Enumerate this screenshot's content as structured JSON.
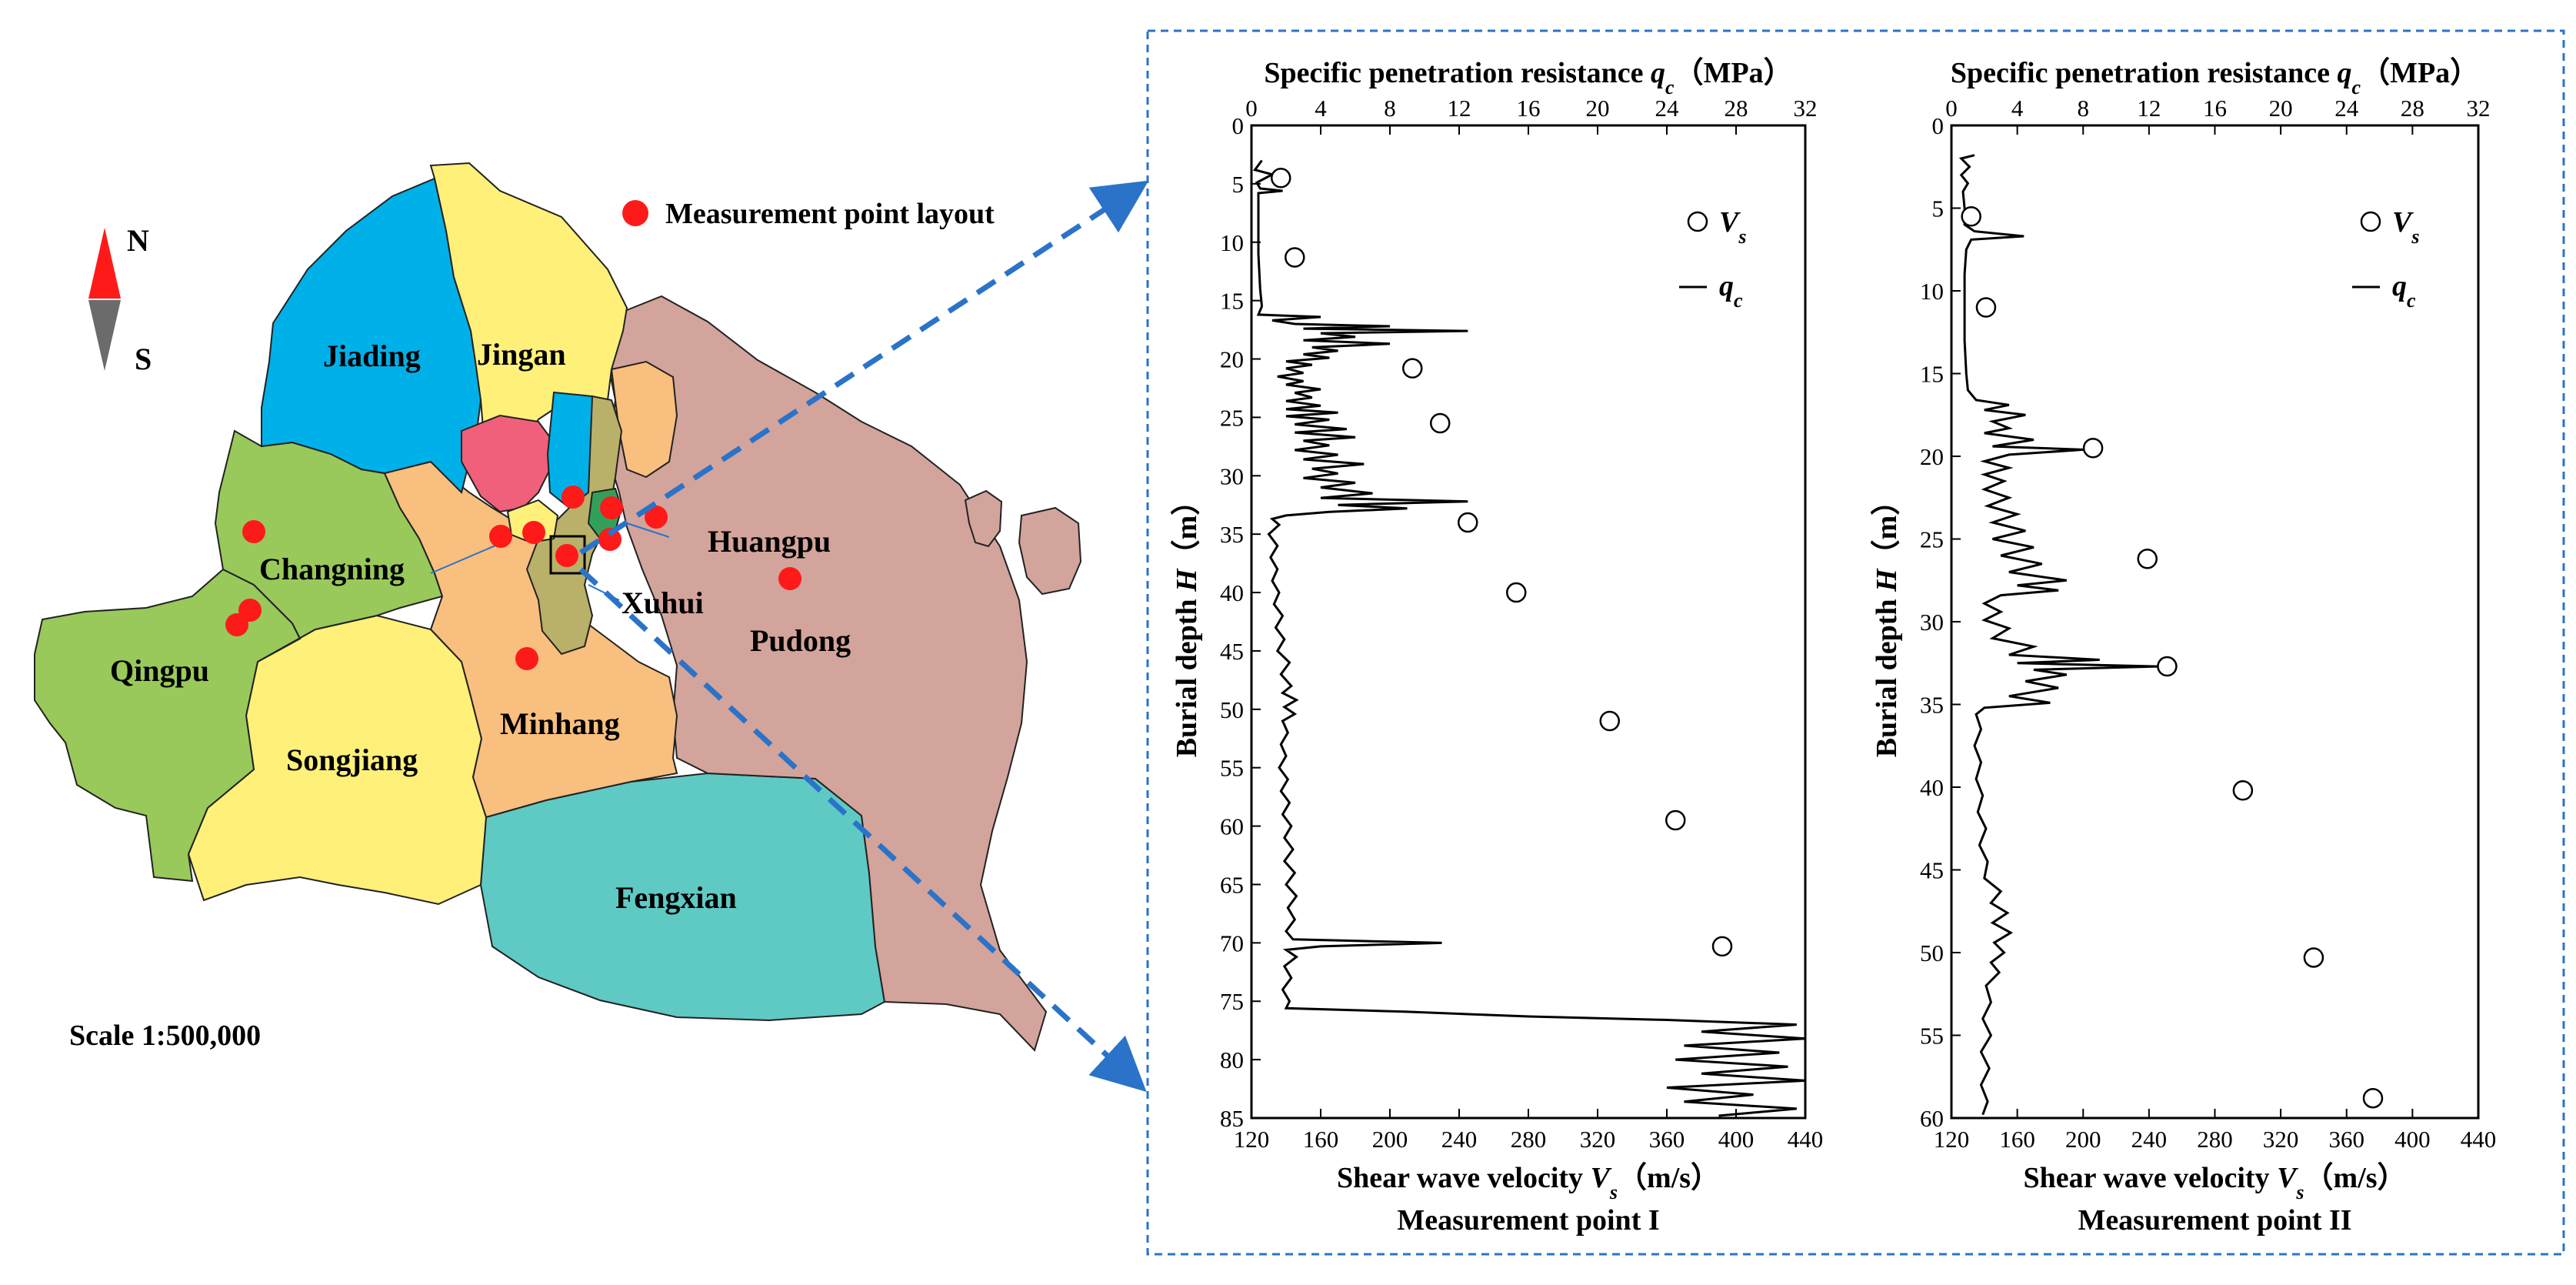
{
  "map": {
    "compass_north": "N",
    "compass_south": "S",
    "legend_label": "Measurement point layout",
    "scale": "Scale 1:500,000",
    "districts": {
      "jiading": "Jiading",
      "jingan": "Jingan",
      "changning": "Changning",
      "qingpu": "Qingpu",
      "songjiang": "Songjiang",
      "minhang": "Minhang",
      "xuhui": "Xuhui",
      "huangpu": "Huangpu",
      "pudong": "Pudong",
      "fengxian": "Fengxian"
    },
    "colors": {
      "jiading": "#00b0e8",
      "jingan": "#fff07a",
      "changning": "#98c95a",
      "qingpu": "#98c95a",
      "songjiang": "#fff07a",
      "minhang": "#f9bf7e",
      "xuhui": "#b9b06a",
      "huangpu": "#33a05a",
      "pudong": "#d3a49b",
      "fengxian": "#5fc9c4",
      "hongkou": "#f0607a",
      "marker": "#ff1a1a",
      "arrow": "#2a73c9"
    }
  },
  "chart_data": [
    {
      "type": "line+scatter",
      "title": "Measurement point I",
      "top_axis_label_prefix": "Specific penetration resistance ",
      "top_axis_symbol": "q",
      "top_axis_subscript": "c",
      "top_axis_unit": "（MPa）",
      "bottom_axis_label_prefix": "Shear wave velocity ",
      "bottom_axis_symbol": "V",
      "bottom_axis_subscript": "s",
      "bottom_axis_unit": "（m/s）",
      "ylabel_prefix": "Burial depth ",
      "ylabel_symbol": "H",
      "ylabel_unit": "（m）",
      "xlim_bottom": [
        120,
        440
      ],
      "xlim_top": [
        0,
        32
      ],
      "ylim": [
        0,
        85
      ],
      "y_inverted": true,
      "xticks_bottom": [
        120,
        160,
        200,
        240,
        280,
        320,
        360,
        400,
        440
      ],
      "xticks_top": [
        0,
        4,
        8,
        12,
        16,
        20,
        24,
        28,
        32
      ],
      "yticks": [
        0,
        5,
        10,
        15,
        20,
        25,
        30,
        35,
        40,
        45,
        50,
        55,
        60,
        65,
        70,
        75,
        80,
        85
      ],
      "legend": {
        "vs": "V",
        "vs_sub": "s",
        "qc": "q",
        "qc_sub": "c"
      },
      "vs_points": [
        {
          "vs": 137,
          "depth": 4.5
        },
        {
          "vs": 145,
          "depth": 11.3
        },
        {
          "vs": 213,
          "depth": 20.8
        },
        {
          "vs": 229,
          "depth": 25.5
        },
        {
          "vs": 245,
          "depth": 34.0
        },
        {
          "vs": 273,
          "depth": 40.0
        },
        {
          "vs": 327,
          "depth": 51.0
        },
        {
          "vs": 365,
          "depth": 59.5
        },
        {
          "vs": 392,
          "depth": 70.3
        }
      ],
      "qc_profile": [
        [
          0.6,
          3.0
        ],
        [
          0.2,
          3.8
        ],
        [
          1.2,
          4.2
        ],
        [
          0.3,
          4.9
        ],
        [
          0.5,
          5.4
        ],
        [
          1.8,
          5.6
        ],
        [
          0.4,
          5.8
        ],
        [
          0.4,
          8.0
        ],
        [
          0.4,
          11.0
        ],
        [
          0.5,
          14.0
        ],
        [
          0.6,
          15.5
        ],
        [
          0.4,
          16.2
        ],
        [
          4.0,
          16.4
        ],
        [
          1.2,
          16.7
        ],
        [
          2.5,
          17.0
        ],
        [
          8.0,
          17.2
        ],
        [
          3.0,
          17.4
        ],
        [
          12.5,
          17.6
        ],
        [
          4.0,
          17.8
        ],
        [
          6.0,
          18.1
        ],
        [
          3.0,
          18.4
        ],
        [
          8.0,
          18.7
        ],
        [
          3.5,
          19.0
        ],
        [
          5.0,
          19.3
        ],
        [
          3.0,
          19.6
        ],
        [
          4.5,
          19.9
        ],
        [
          2.0,
          20.2
        ],
        [
          3.5,
          20.5
        ],
        [
          2.0,
          20.8
        ],
        [
          3.0,
          21.2
        ],
        [
          1.5,
          21.5
        ],
        [
          3.0,
          21.9
        ],
        [
          2.0,
          22.2
        ],
        [
          4.0,
          22.6
        ],
        [
          2.5,
          22.9
        ],
        [
          3.5,
          23.3
        ],
        [
          2.0,
          23.6
        ],
        [
          4.0,
          24.0
        ],
        [
          2.0,
          24.3
        ],
        [
          5.0,
          24.6
        ],
        [
          2.0,
          24.9
        ],
        [
          4.5,
          25.2
        ],
        [
          2.5,
          25.6
        ],
        [
          5.5,
          26.0
        ],
        [
          2.5,
          26.3
        ],
        [
          6.0,
          26.7
        ],
        [
          3.0,
          27.0
        ],
        [
          4.5,
          27.4
        ],
        [
          2.5,
          27.8
        ],
        [
          5.0,
          28.2
        ],
        [
          3.0,
          28.6
        ],
        [
          6.5,
          29.0
        ],
        [
          3.5,
          29.4
        ],
        [
          5.0,
          29.8
        ],
        [
          3.0,
          30.2
        ],
        [
          6.0,
          30.6
        ],
        [
          4.0,
          31.0
        ],
        [
          7.0,
          31.5
        ],
        [
          4.0,
          31.9
        ],
        [
          12.5,
          32.2
        ],
        [
          5.0,
          32.5
        ],
        [
          9.0,
          32.8
        ],
        [
          4.5,
          33.1
        ],
        [
          2.0,
          33.4
        ],
        [
          1.2,
          33.7
        ],
        [
          1.6,
          34.2
        ],
        [
          1.0,
          35.0
        ],
        [
          1.5,
          36.0
        ],
        [
          1.1,
          37.0
        ],
        [
          1.5,
          38.0
        ],
        [
          1.2,
          39.0
        ],
        [
          1.6,
          40.0
        ],
        [
          1.3,
          41.0
        ],
        [
          1.8,
          42.0
        ],
        [
          1.4,
          43.0
        ],
        [
          1.9,
          44.0
        ],
        [
          1.5,
          45.0
        ],
        [
          2.2,
          46.0
        ],
        [
          1.7,
          47.0
        ],
        [
          2.3,
          48.0
        ],
        [
          1.8,
          48.6
        ],
        [
          2.6,
          49.2
        ],
        [
          1.9,
          49.8
        ],
        [
          2.5,
          50.4
        ],
        [
          1.8,
          51.0
        ],
        [
          2.1,
          52.0
        ],
        [
          1.7,
          53.0
        ],
        [
          2.0,
          54.0
        ],
        [
          1.6,
          55.0
        ],
        [
          2.1,
          56.0
        ],
        [
          1.7,
          57.0
        ],
        [
          2.2,
          58.0
        ],
        [
          1.8,
          59.0
        ],
        [
          2.3,
          60.0
        ],
        [
          1.9,
          61.0
        ],
        [
          2.4,
          62.0
        ],
        [
          1.9,
          63.0
        ],
        [
          2.5,
          64.0
        ],
        [
          2.0,
          65.0
        ],
        [
          2.6,
          66.0
        ],
        [
          2.1,
          67.0
        ],
        [
          2.5,
          68.0
        ],
        [
          2.0,
          69.0
        ],
        [
          2.4,
          69.7
        ],
        [
          11.0,
          70.0
        ],
        [
          4.0,
          70.3
        ],
        [
          2.0,
          70.6
        ],
        [
          2.6,
          71.2
        ],
        [
          1.9,
          72.0
        ],
        [
          2.3,
          73.0
        ],
        [
          1.8,
          74.0
        ],
        [
          2.2,
          75.0
        ],
        [
          2.0,
          75.6
        ],
        [
          9.0,
          75.9
        ],
        [
          16.0,
          76.3
        ],
        [
          24.0,
          76.6
        ],
        [
          31.5,
          77.0
        ],
        [
          26.0,
          77.6
        ],
        [
          32.0,
          78.2
        ],
        [
          25.0,
          78.8
        ],
        [
          30.5,
          79.4
        ],
        [
          24.5,
          80.0
        ],
        [
          31.0,
          80.6
        ],
        [
          26.0,
          81.2
        ],
        [
          32.0,
          81.8
        ],
        [
          24.0,
          82.4
        ],
        [
          29.0,
          83.0
        ],
        [
          25.0,
          83.6
        ],
        [
          31.5,
          84.2
        ],
        [
          27.0,
          84.8
        ]
      ]
    },
    {
      "type": "line+scatter",
      "title": "Measurement point II",
      "top_axis_label_prefix": "Specific penetration resistance ",
      "top_axis_symbol": "q",
      "top_axis_subscript": "c",
      "top_axis_unit": "（MPa）",
      "bottom_axis_label_prefix": "Shear wave velocity ",
      "bottom_axis_symbol": "V",
      "bottom_axis_subscript": "s",
      "bottom_axis_unit": "（m/s）",
      "ylabel_prefix": "Burial depth ",
      "ylabel_symbol": "H",
      "ylabel_unit": "（m）",
      "xlim_bottom": [
        120,
        440
      ],
      "xlim_top": [
        0,
        32
      ],
      "ylim": [
        0,
        60
      ],
      "y_inverted": true,
      "xticks_bottom": [
        120,
        160,
        200,
        240,
        280,
        320,
        360,
        400,
        440
      ],
      "xticks_top": [
        0,
        4,
        8,
        12,
        16,
        20,
        24,
        28,
        32
      ],
      "yticks": [
        0,
        5,
        10,
        15,
        20,
        25,
        30,
        35,
        40,
        45,
        50,
        55,
        60
      ],
      "legend": {
        "vs": "V",
        "vs_sub": "s",
        "qc": "q",
        "qc_sub": "c"
      },
      "vs_points": [
        {
          "vs": 132,
          "depth": 5.5
        },
        {
          "vs": 141,
          "depth": 11.0
        },
        {
          "vs": 206,
          "depth": 19.5
        },
        {
          "vs": 239,
          "depth": 26.2
        },
        {
          "vs": 251,
          "depth": 32.7
        },
        {
          "vs": 297,
          "depth": 40.2
        },
        {
          "vs": 340,
          "depth": 50.3
        },
        {
          "vs": 376,
          "depth": 58.8
        }
      ],
      "qc_profile": [
        [
          1.4,
          1.8
        ],
        [
          0.6,
          2.0
        ],
        [
          1.1,
          2.5
        ],
        [
          0.6,
          3.0
        ],
        [
          1.0,
          3.5
        ],
        [
          0.7,
          4.0
        ],
        [
          0.8,
          5.0
        ],
        [
          0.8,
          6.0
        ],
        [
          1.4,
          6.4
        ],
        [
          4.4,
          6.7
        ],
        [
          1.2,
          6.9
        ],
        [
          0.9,
          7.5
        ],
        [
          0.8,
          9.0
        ],
        [
          0.8,
          11.0
        ],
        [
          0.8,
          13.0
        ],
        [
          0.9,
          15.0
        ],
        [
          1.0,
          16.0
        ],
        [
          1.5,
          16.6
        ],
        [
          3.5,
          16.9
        ],
        [
          2.0,
          17.2
        ],
        [
          4.5,
          17.5
        ],
        [
          2.5,
          17.9
        ],
        [
          3.5,
          18.3
        ],
        [
          2.0,
          18.6
        ],
        [
          5.0,
          19.0
        ],
        [
          2.5,
          19.4
        ],
        [
          8.0,
          19.6
        ],
        [
          3.5,
          19.9
        ],
        [
          2.0,
          20.3
        ],
        [
          3.5,
          20.7
        ],
        [
          2.0,
          21.1
        ],
        [
          3.2,
          21.5
        ],
        [
          2.0,
          22.0
        ],
        [
          3.5,
          22.5
        ],
        [
          2.2,
          23.0
        ],
        [
          4.0,
          23.5
        ],
        [
          2.5,
          24.0
        ],
        [
          4.5,
          24.5
        ],
        [
          2.5,
          25.0
        ],
        [
          5.0,
          25.5
        ],
        [
          3.0,
          26.0
        ],
        [
          5.5,
          26.5
        ],
        [
          3.5,
          27.0
        ],
        [
          7.0,
          27.5
        ],
        [
          4.0,
          27.8
        ],
        [
          6.5,
          28.1
        ],
        [
          3.0,
          28.4
        ],
        [
          2.0,
          28.9
        ],
        [
          3.0,
          29.4
        ],
        [
          2.0,
          29.9
        ],
        [
          3.5,
          30.4
        ],
        [
          2.5,
          31.0
        ],
        [
          5.0,
          31.5
        ],
        [
          3.5,
          32.0
        ],
        [
          9.0,
          32.3
        ],
        [
          4.0,
          32.5
        ],
        [
          12.5,
          32.7
        ],
        [
          5.0,
          32.9
        ],
        [
          7.0,
          33.2
        ],
        [
          4.5,
          33.6
        ],
        [
          6.5,
          34.0
        ],
        [
          3.5,
          34.5
        ],
        [
          6.0,
          34.9
        ],
        [
          2.0,
          35.2
        ],
        [
          1.5,
          35.6
        ],
        [
          1.8,
          36.5
        ],
        [
          1.4,
          37.5
        ],
        [
          1.8,
          38.5
        ],
        [
          1.5,
          39.5
        ],
        [
          1.9,
          40.5
        ],
        [
          1.6,
          41.5
        ],
        [
          2.1,
          42.5
        ],
        [
          1.7,
          43.5
        ],
        [
          2.2,
          44.5
        ],
        [
          2.0,
          45.5
        ],
        [
          3.0,
          46.3
        ],
        [
          2.4,
          47.0
        ],
        [
          3.4,
          47.6
        ],
        [
          2.5,
          48.2
        ],
        [
          3.6,
          48.8
        ],
        [
          2.6,
          49.4
        ],
        [
          3.2,
          50.0
        ],
        [
          2.4,
          50.6
        ],
        [
          2.9,
          51.2
        ],
        [
          2.1,
          52.0
        ],
        [
          2.4,
          53.0
        ],
        [
          1.9,
          54.0
        ],
        [
          2.4,
          55.0
        ],
        [
          1.8,
          56.0
        ],
        [
          2.3,
          57.0
        ],
        [
          1.8,
          58.0
        ],
        [
          2.2,
          59.0
        ],
        [
          1.9,
          59.8
        ]
      ]
    }
  ]
}
